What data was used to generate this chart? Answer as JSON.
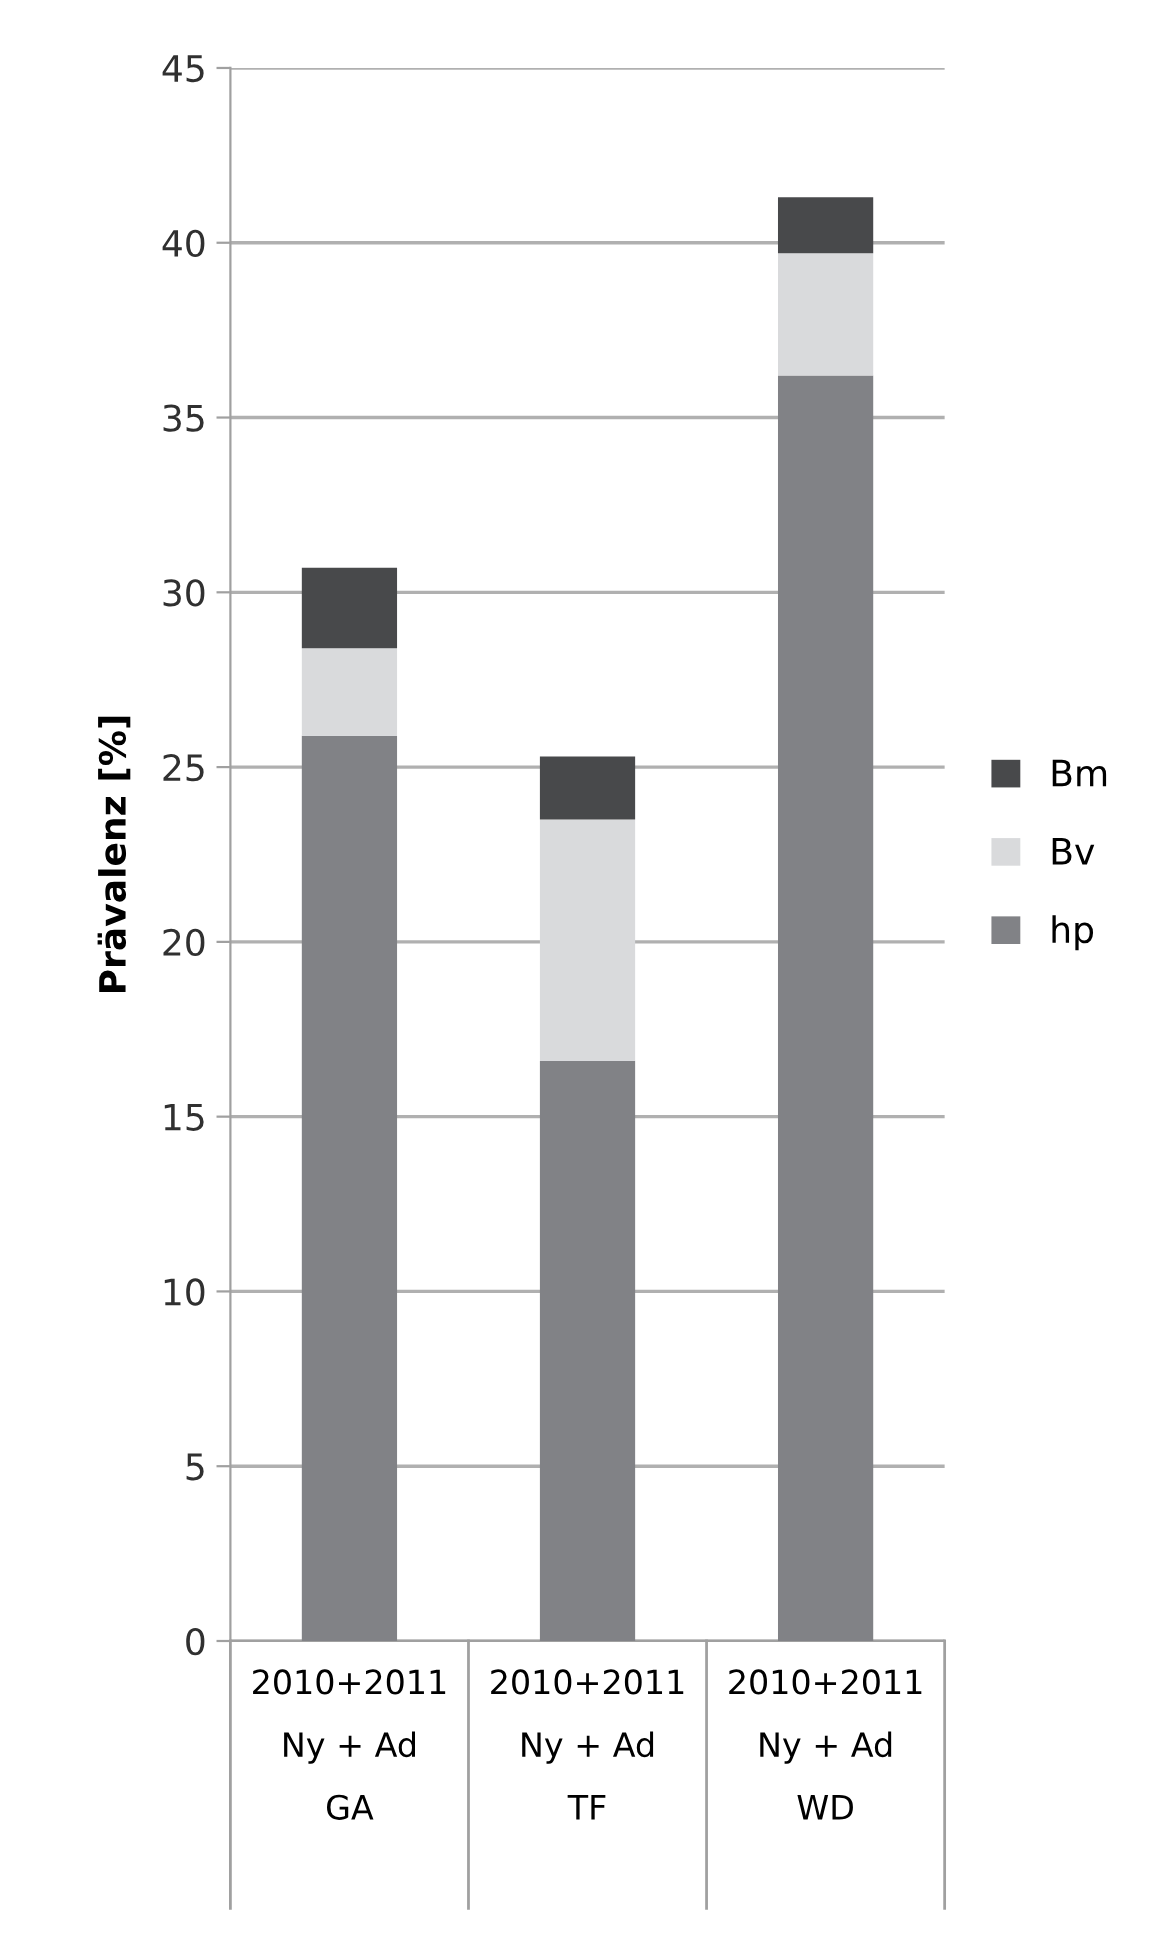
{
  "chart_data": {
    "type": "bar",
    "stacked": true,
    "ylabel": "Prävalenz [%]",
    "categories": [
      "2010+2011\nNy + Ad\nGA",
      "2010+2011\nNy + Ad\nTF",
      "2010+2011\nNy + Ad\nWD"
    ],
    "series": [
      {
        "name": "hp",
        "color": "#818286",
        "values": [
          25.9,
          16.6,
          36.2
        ]
      },
      {
        "name": "Bv",
        "color": "#d9dadc",
        "values": [
          2.5,
          6.9,
          3.5
        ]
      },
      {
        "name": "Bm",
        "color": "#48494b",
        "values": [
          2.3,
          1.8,
          1.6
        ]
      }
    ],
    "ylim": [
      0,
      45
    ],
    "yticks": [
      0,
      5,
      10,
      15,
      20,
      25,
      30,
      35,
      40,
      45
    ],
    "grid": "y",
    "legend": "right"
  }
}
